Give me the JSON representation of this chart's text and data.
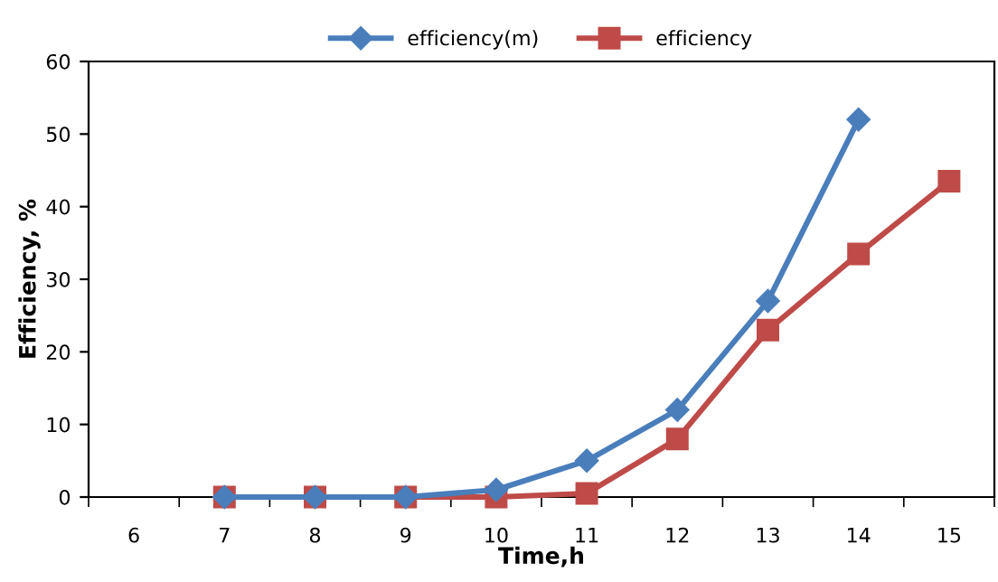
{
  "chart_data": {
    "type": "line",
    "xlabel": "Time,h",
    "ylabel": "Efficiency, %",
    "categories": [
      "6",
      "7",
      "8",
      "9",
      "10",
      "11",
      "12",
      "13",
      "14",
      "15"
    ],
    "series": [
      {
        "name": "efficiency(m)",
        "color": "#4a7ebb",
        "marker": "diamond",
        "values": [
          null,
          0,
          0,
          0,
          1,
          5,
          12,
          27,
          52,
          null
        ]
      },
      {
        "name": "efficiency",
        "color": "#be4b48",
        "marker": "square",
        "values": [
          null,
          0,
          0,
          0,
          0,
          0.5,
          8,
          23,
          33.5,
          43.5
        ]
      }
    ],
    "ylim": [
      0,
      60
    ],
    "yticks": [
      0,
      10,
      20,
      30,
      40,
      50,
      60
    ],
    "grid": false,
    "legend": "top"
  }
}
